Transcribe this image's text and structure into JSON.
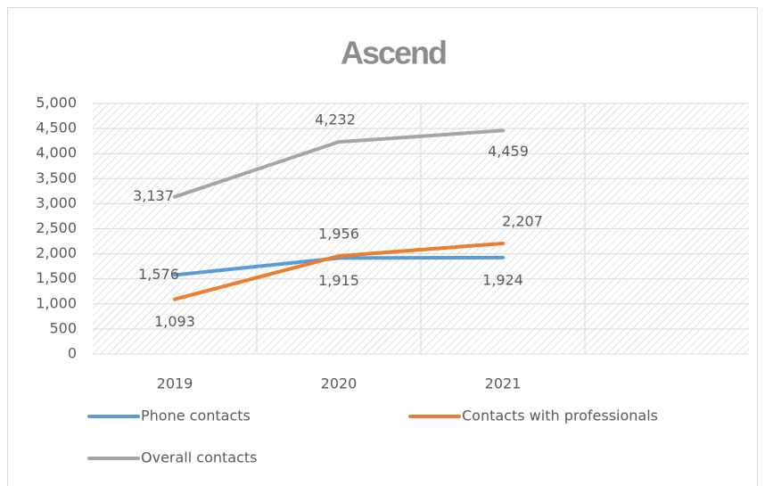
{
  "chart_data": {
    "type": "line",
    "title": "Ascend",
    "categories": [
      "2019",
      "2020",
      "2021",
      null
    ],
    "series": [
      {
        "name": "Phone contacts",
        "color": "#5b9bd5",
        "values": [
          1576,
          1915,
          1924,
          null
        ],
        "value_labels": [
          "1,576",
          "1,915",
          "1,924",
          null
        ]
      },
      {
        "name": "Contacts with professionals",
        "color": "#ed7d31",
        "values": [
          1093,
          1956,
          2207,
          null
        ],
        "value_labels": [
          "1,093",
          "1,956",
          "2,207",
          null
        ]
      },
      {
        "name": "Overall contacts",
        "color": "#a5a5a5",
        "values": [
          3137,
          4232,
          4459,
          null
        ],
        "value_labels": [
          "3,137",
          "4,232",
          "4,459",
          null
        ]
      }
    ],
    "ylim": [
      0,
      5000
    ],
    "yticks": [
      0,
      500,
      {
        "value": 1000,
        "label": "1,000"
      },
      {
        "value": 1500,
        "label": "1,500"
      },
      {
        "value": 2000,
        "label": "2,000"
      },
      {
        "value": 2500,
        "label": "2,500"
      },
      {
        "value": 3000,
        "label": "3,000"
      },
      {
        "value": 3500,
        "label": "3,500"
      },
      {
        "value": 4000,
        "label": "4,000"
      },
      {
        "value": 4500,
        "label": "4,500"
      },
      {
        "value": 5000,
        "label": "5,000"
      }
    ],
    "grid": true,
    "legend": "bottom"
  }
}
